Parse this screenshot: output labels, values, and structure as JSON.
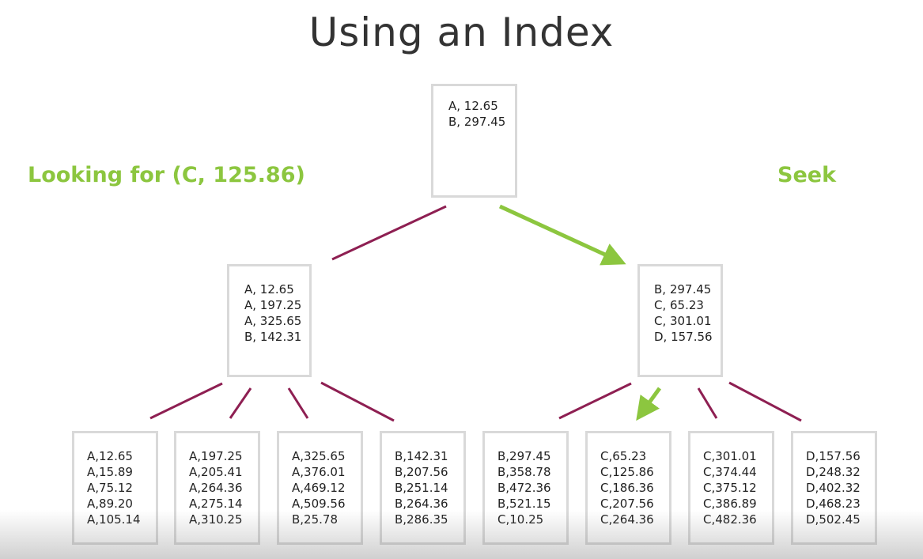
{
  "title": "Using an Index",
  "labels": {
    "left": "Looking for (C, 125.86)",
    "right": "Seek"
  },
  "colors": {
    "edge": "#8e1f52",
    "highlight": "#8cc63f",
    "box_border": "#d9d9d9"
  },
  "tree": {
    "root": {
      "entries": [
        "A, 12.65",
        "B, 297.45"
      ]
    },
    "level1": [
      {
        "entries": [
          "A, 12.65",
          "A, 197.25",
          "A, 325.65",
          "B, 142.31"
        ]
      },
      {
        "entries": [
          "B, 297.45",
          "C, 65.23",
          "C, 301.01",
          "D, 157.56"
        ]
      }
    ],
    "leaves": [
      {
        "entries": [
          "A,12.65",
          "A,15.89",
          "A,75.12",
          "A,89.20",
          "A,105.14"
        ]
      },
      {
        "entries": [
          "A,197.25",
          "A,205.41",
          "A,264.36",
          "A,275.14",
          "A,310.25"
        ]
      },
      {
        "entries": [
          "A,325.65",
          "A,376.01",
          "A,469.12",
          "A,509.56",
          "B,25.78"
        ]
      },
      {
        "entries": [
          "B,142.31",
          "B,207.56",
          "B,251.14",
          "B,264.36",
          "B,286.35"
        ]
      },
      {
        "entries": [
          "B,297.45",
          "B,358.78",
          "B,472.36",
          "B,521.15",
          "C,10.25"
        ]
      },
      {
        "entries": [
          "C,65.23",
          "C,125.86",
          "C,186.36",
          "C,207.56",
          "C,264.36"
        ]
      },
      {
        "entries": [
          "C,301.01",
          "C,374.44",
          "C,375.12",
          "C,386.89",
          "C,482.36"
        ]
      },
      {
        "entries": [
          "D,157.56",
          "D,248.32",
          "D,402.32",
          "D,468.23",
          "D,502.45"
        ]
      }
    ]
  }
}
